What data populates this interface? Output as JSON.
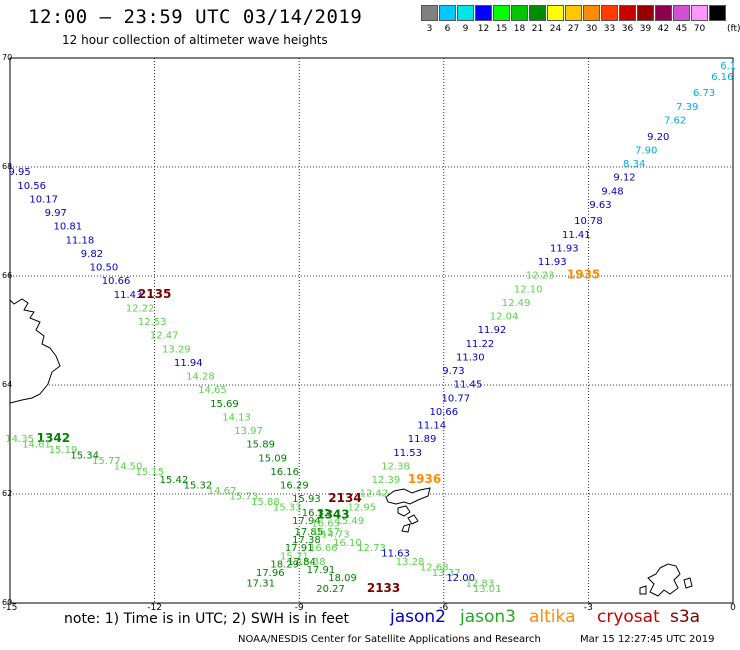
{
  "header": {
    "title": "12:00  — 23:59 UTC 03/14/2019",
    "subtitle": "12 hour collection of altimeter wave heights"
  },
  "scale": {
    "swatches": [
      {
        "label": "3",
        "color": "#808080"
      },
      {
        "label": "6",
        "color": "#00c8ff"
      },
      {
        "label": "9",
        "color": "#00e6e6"
      },
      {
        "label": "12",
        "color": "#0000ff"
      },
      {
        "label": "15",
        "color": "#00ff00"
      },
      {
        "label": "18",
        "color": "#00c800"
      },
      {
        "label": "21",
        "color": "#008c00"
      },
      {
        "label": "24",
        "color": "#ffff00"
      },
      {
        "label": "27",
        "color": "#ffc800"
      },
      {
        "label": "30",
        "color": "#ff8c00"
      },
      {
        "label": "33",
        "color": "#ff3c00"
      },
      {
        "label": "36",
        "color": "#c80000"
      },
      {
        "label": "39",
        "color": "#960000"
      },
      {
        "label": "42",
        "color": "#8c0050"
      },
      {
        "label": "45",
        "color": "#d250d2"
      },
      {
        "label": "70",
        "color": "#ff96ff"
      },
      {
        "label": "",
        "color": "#000000"
      }
    ],
    "unit": "(ft)"
  },
  "map": {
    "lat_ticks": [
      "70",
      "68",
      "66",
      "64",
      "62",
      "60"
    ],
    "lon_ticks": [
      "-15",
      "-12",
      "-9",
      "-6",
      "-3",
      "0"
    ],
    "colors": {
      "jason2": "#0000c8",
      "jason3": "#5ad24b",
      "altika": "#ff8c00",
      "cryosat": "#c80000",
      "s3a": "#7a0000",
      "j3time": "#008000",
      "sky": "#00aaee"
    },
    "labels": [
      {
        "t": "6.1",
        "lon": -0.1,
        "lat": 69.8,
        "c": "sky"
      },
      {
        "t": "6.16",
        "lon": -0.22,
        "lat": 69.6,
        "c": "sky"
      },
      {
        "t": "6.73",
        "lon": -0.6,
        "lat": 69.3,
        "c": "sky"
      },
      {
        "t": "7.39",
        "lon": -0.95,
        "lat": 69.05,
        "c": "sky"
      },
      {
        "t": "7.62",
        "lon": -1.2,
        "lat": 68.8,
        "c": "sky"
      },
      {
        "t": "9.20",
        "lon": -1.55,
        "lat": 68.5,
        "c": "jason2"
      },
      {
        "t": "7.90",
        "lon": -1.8,
        "lat": 68.25,
        "c": "sky"
      },
      {
        "t": "8.34",
        "lon": -2.05,
        "lat": 68.0,
        "c": "sky"
      },
      {
        "t": "9.12",
        "lon": -2.25,
        "lat": 67.75,
        "c": "jason2"
      },
      {
        "t": "9.48",
        "lon": -2.5,
        "lat": 67.5,
        "c": "jason2"
      },
      {
        "t": "9.63",
        "lon": -2.75,
        "lat": 67.25,
        "c": "jason2"
      },
      {
        "t": "10.78",
        "lon": -3.0,
        "lat": 66.95,
        "c": "jason2"
      },
      {
        "t": "11.41",
        "lon": -3.25,
        "lat": 66.7,
        "c": "jason2"
      },
      {
        "t": "11.93",
        "lon": -3.5,
        "lat": 66.45,
        "c": "jason2"
      },
      {
        "t": "11.93",
        "lon": -3.75,
        "lat": 66.2,
        "c": "jason2"
      },
      {
        "t": "12.23",
        "lon": -4.0,
        "lat": 65.95,
        "c": "jason3"
      },
      {
        "t": "1935",
        "lon": -3.1,
        "lat": 65.95,
        "c": "altika",
        "time": true
      },
      {
        "t": "12.10",
        "lon": -4.25,
        "lat": 65.7,
        "c": "jason3"
      },
      {
        "t": "12.49",
        "lon": -4.5,
        "lat": 65.45,
        "c": "jason3"
      },
      {
        "t": "12.04",
        "lon": -4.75,
        "lat": 65.2,
        "c": "jason3"
      },
      {
        "t": "11.92",
        "lon": -5.0,
        "lat": 64.95,
        "c": "jason2"
      },
      {
        "t": "11.22",
        "lon": -5.25,
        "lat": 64.7,
        "c": "jason2"
      },
      {
        "t": "11.30",
        "lon": -5.45,
        "lat": 64.45,
        "c": "jason2"
      },
      {
        "t": "9.73",
        "lon": -5.8,
        "lat": 64.2,
        "c": "jason2"
      },
      {
        "t": "11.45",
        "lon": -5.5,
        "lat": 63.95,
        "c": "jason2"
      },
      {
        "t": "10.77",
        "lon": -5.75,
        "lat": 63.7,
        "c": "jason2"
      },
      {
        "t": "10.66",
        "lon": -6.0,
        "lat": 63.45,
        "c": "jason2"
      },
      {
        "t": "11.14",
        "lon": -6.25,
        "lat": 63.2,
        "c": "jason2"
      },
      {
        "t": "11.89",
        "lon": -6.45,
        "lat": 62.95,
        "c": "jason2"
      },
      {
        "t": "11.53",
        "lon": -6.75,
        "lat": 62.7,
        "c": "jason2"
      },
      {
        "t": "12.38",
        "lon": -7.0,
        "lat": 62.45,
        "c": "jason3"
      },
      {
        "t": "12.39",
        "lon": -7.2,
        "lat": 62.2,
        "c": "jason3"
      },
      {
        "t": "1936",
        "lon": -6.4,
        "lat": 62.2,
        "c": "altika",
        "time": true
      },
      {
        "t": "12.42",
        "lon": -7.45,
        "lat": 61.95,
        "c": "jason3"
      },
      {
        "t": "12.95",
        "lon": -7.7,
        "lat": 61.7,
        "c": "jason3"
      },
      {
        "t": "15.49",
        "lon": -7.95,
        "lat": 61.45,
        "c": "jason3"
      },
      {
        "t": "14.73",
        "lon": -8.25,
        "lat": 61.2,
        "c": "jason3"
      },
      {
        "t": "16.66",
        "lon": -8.5,
        "lat": 60.95,
        "c": "jason3"
      },
      {
        "t": "15.38",
        "lon": -8.75,
        "lat": 60.7,
        "c": "jason3"
      },
      {
        "t": "9.95",
        "lon": -14.8,
        "lat": 67.85,
        "c": "jason2"
      },
      {
        "t": "10.56",
        "lon": -14.55,
        "lat": 67.6,
        "c": "jason2"
      },
      {
        "t": "10.17",
        "lon": -14.3,
        "lat": 67.35,
        "c": "jason2"
      },
      {
        "t": "9.97",
        "lon": -14.05,
        "lat": 67.1,
        "c": "jason2"
      },
      {
        "t": "10.81",
        "lon": -13.8,
        "lat": 66.85,
        "c": "jason2"
      },
      {
        "t": "11.18",
        "lon": -13.55,
        "lat": 66.6,
        "c": "jason2"
      },
      {
        "t": "9.82",
        "lon": -13.3,
        "lat": 66.35,
        "c": "jason2"
      },
      {
        "t": "10.50",
        "lon": -13.05,
        "lat": 66.1,
        "c": "jason2"
      },
      {
        "t": "10.66",
        "lon": -12.8,
        "lat": 65.85,
        "c": "jason2"
      },
      {
        "t": "11.43",
        "lon": -12.55,
        "lat": 65.6,
        "c": "jason2"
      },
      {
        "t": "2135",
        "lon": -12.0,
        "lat": 65.6,
        "c": "s3a",
        "time": true
      },
      {
        "t": "12.22",
        "lon": -12.3,
        "lat": 65.35,
        "c": "jason3"
      },
      {
        "t": "12.53",
        "lon": -12.05,
        "lat": 65.1,
        "c": "jason3"
      },
      {
        "t": "12.47",
        "lon": -11.8,
        "lat": 64.85,
        "c": "jason3"
      },
      {
        "t": "13.29",
        "lon": -11.55,
        "lat": 64.6,
        "c": "jason3"
      },
      {
        "t": "11.94",
        "lon": -11.3,
        "lat": 64.35,
        "c": "jason2"
      },
      {
        "t": "14.28",
        "lon": -11.05,
        "lat": 64.1,
        "c": "jason3"
      },
      {
        "t": "14.65",
        "lon": -10.8,
        "lat": 63.85,
        "c": "jason3"
      },
      {
        "t": "15.69",
        "lon": -10.55,
        "lat": 63.6,
        "c": "j3time"
      },
      {
        "t": "14.13",
        "lon": -10.3,
        "lat": 63.35,
        "c": "jason3"
      },
      {
        "t": "13.97",
        "lon": -10.05,
        "lat": 63.1,
        "c": "jason3"
      },
      {
        "t": "15.89",
        "lon": -9.8,
        "lat": 62.85,
        "c": "j3time"
      },
      {
        "t": "15.09",
        "lon": -9.55,
        "lat": 62.6,
        "c": "j3time"
      },
      {
        "t": "16.16",
        "lon": -9.3,
        "lat": 62.35,
        "c": "j3time"
      },
      {
        "t": "16.29",
        "lon": -9.1,
        "lat": 62.1,
        "c": "j3time"
      },
      {
        "t": "15.93",
        "lon": -8.85,
        "lat": 61.85,
        "c": "j3time"
      },
      {
        "t": "16.32",
        "lon": -8.65,
        "lat": 61.6,
        "c": "j3time"
      },
      {
        "t": "2134",
        "lon": -8.05,
        "lat": 61.85,
        "c": "s3a",
        "time": true
      },
      {
        "t": "14.35",
        "lon": -14.8,
        "lat": 62.95,
        "c": "jason3"
      },
      {
        "t": "1342",
        "lon": -14.1,
        "lat": 62.95,
        "c": "j3time",
        "time": true
      },
      {
        "t": "14.61",
        "lon": -14.45,
        "lat": 62.85,
        "c": "jason3"
      },
      {
        "t": "15.19",
        "lon": -13.9,
        "lat": 62.75,
        "c": "jason3"
      },
      {
        "t": "15.34",
        "lon": -13.45,
        "lat": 62.65,
        "c": "j3time"
      },
      {
        "t": "15.77",
        "lon": -13.0,
        "lat": 62.55,
        "c": "jason3"
      },
      {
        "t": "14.50",
        "lon": -12.55,
        "lat": 62.45,
        "c": "jason3"
      },
      {
        "t": "15.15",
        "lon": -12.1,
        "lat": 62.35,
        "c": "jason3"
      },
      {
        "t": "15.42",
        "lon": -11.6,
        "lat": 62.2,
        "c": "j3time"
      },
      {
        "t": "15.32",
        "lon": -11.1,
        "lat": 62.1,
        "c": "j3time"
      },
      {
        "t": "14.67",
        "lon": -10.6,
        "lat": 62.0,
        "c": "jason3"
      },
      {
        "t": "15.73",
        "lon": -10.15,
        "lat": 61.9,
        "c": "jason3"
      },
      {
        "t": "15.88",
        "lon": -9.7,
        "lat": 61.8,
        "c": "jason3"
      },
      {
        "t": "15.33",
        "lon": -9.25,
        "lat": 61.7,
        "c": "jason3"
      },
      {
        "t": "1343",
        "lon": -8.3,
        "lat": 61.55,
        "c": "j3time",
        "time": true
      },
      {
        "t": "17.94",
        "lon": -8.85,
        "lat": 61.45,
        "c": "j3time"
      },
      {
        "t": "16.65",
        "lon": -8.45,
        "lat": 61.4,
        "c": "jason3"
      },
      {
        "t": "17.85",
        "lon": -8.8,
        "lat": 61.25,
        "c": "j3time"
      },
      {
        "t": "16.57",
        "lon": -8.45,
        "lat": 61.25,
        "c": "jason3"
      },
      {
        "t": "17.38",
        "lon": -8.85,
        "lat": 61.1,
        "c": "j3time"
      },
      {
        "t": "16.10",
        "lon": -8.0,
        "lat": 61.05,
        "c": "jason3"
      },
      {
        "t": "17.91",
        "lon": -9.0,
        "lat": 60.95,
        "c": "j3time"
      },
      {
        "t": "15.71",
        "lon": -9.1,
        "lat": 60.8,
        "c": "jason3"
      },
      {
        "t": "12.73",
        "lon": -7.5,
        "lat": 60.95,
        "c": "jason3"
      },
      {
        "t": "11.63",
        "lon": -7.0,
        "lat": 60.85,
        "c": "jason2"
      },
      {
        "t": "13.28",
        "lon": -6.7,
        "lat": 60.7,
        "c": "jason3"
      },
      {
        "t": "18.29",
        "lon": -9.3,
        "lat": 60.65,
        "c": "j3time"
      },
      {
        "t": "17.84",
        "lon": -8.95,
        "lat": 60.7,
        "c": "j3time"
      },
      {
        "t": "12.68",
        "lon": -6.2,
        "lat": 60.6,
        "c": "jason3"
      },
      {
        "t": "17.91",
        "lon": -8.55,
        "lat": 60.55,
        "c": "j3time"
      },
      {
        "t": "13.37",
        "lon": -5.95,
        "lat": 60.5,
        "c": "jason3"
      },
      {
        "t": "17.96",
        "lon": -9.6,
        "lat": 60.5,
        "c": "j3time"
      },
      {
        "t": "12.00",
        "lon": -5.65,
        "lat": 60.4,
        "c": "jason2"
      },
      {
        "t": "18.09",
        "lon": -8.1,
        "lat": 60.4,
        "c": "j3time"
      },
      {
        "t": "12.83",
        "lon": -5.25,
        "lat": 60.3,
        "c": "jason3"
      },
      {
        "t": "17.31",
        "lon": -9.8,
        "lat": 60.3,
        "c": "j3time"
      },
      {
        "t": "13.01",
        "lon": -5.1,
        "lat": 60.2,
        "c": "jason3"
      },
      {
        "t": "20.27",
        "lon": -8.35,
        "lat": 60.2,
        "c": "j3time"
      },
      {
        "t": "2133",
        "lon": -7.25,
        "lat": 60.2,
        "c": "s3a",
        "time": true
      }
    ]
  },
  "legend": {
    "note": "note: 1) Time is in UTC; 2) SWH is in feet",
    "missions": [
      {
        "name": "jason2",
        "color": "#0000c8"
      },
      {
        "name": "jason3",
        "color": "#22aa22"
      },
      {
        "name": "altika",
        "color": "#ff8c00"
      },
      {
        "name": "cryosat",
        "color": "#c80000"
      },
      {
        "name": "s3a",
        "color": "#7a0000"
      }
    ]
  },
  "footer": {
    "credit": "NOAA/NESDIS Center for Satellite Applications and Research",
    "timestamp": "Mar 15 12:27:45 UTC 2019"
  }
}
